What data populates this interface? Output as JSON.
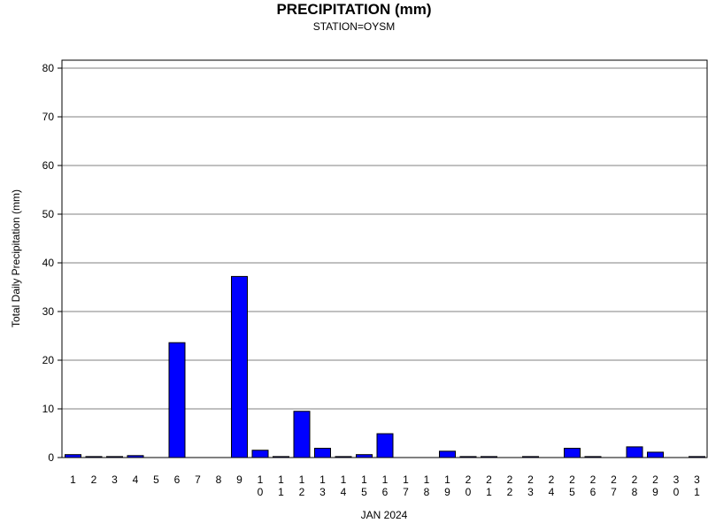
{
  "chart_data": {
    "type": "bar",
    "title": "PRECIPITATION (mm)",
    "subtitle": "STATION=OYSM",
    "xlabel": "JAN 2024",
    "ylabel": "Total Daily Precipitation (mm)",
    "ylim": [
      0,
      80
    ],
    "yticks": [
      0,
      10,
      20,
      30,
      40,
      50,
      60,
      70,
      80
    ],
    "grid": true,
    "bar_color": "#0000ff",
    "categories": [
      "1",
      "2",
      "3",
      "4",
      "5",
      "6",
      "7",
      "8",
      "9",
      "10",
      "11",
      "12",
      "13",
      "14",
      "15",
      "16",
      "17",
      "18",
      "19",
      "20",
      "21",
      "22",
      "23",
      "24",
      "25",
      "26",
      "27",
      "28",
      "29",
      "30",
      "31"
    ],
    "values": [
      0.6,
      0.2,
      0.2,
      0.4,
      0,
      23.6,
      0,
      0,
      37.2,
      1.5,
      0.2,
      9.5,
      1.9,
      0.2,
      0.6,
      4.9,
      0,
      0,
      1.3,
      0.2,
      0.2,
      0,
      0.2,
      0,
      1.9,
      0.2,
      0,
      2.2,
      1.1,
      0,
      0.2
    ]
  }
}
